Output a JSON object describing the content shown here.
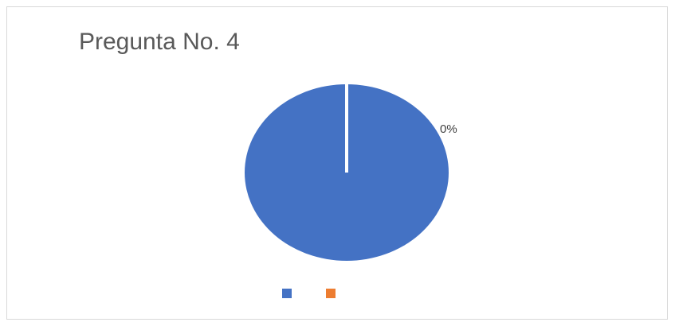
{
  "chart_data": {
    "type": "pie",
    "title": "Pregunta No. 4",
    "values": [
      100,
      0
    ],
    "data_labels": [
      "",
      "0%"
    ],
    "colors": [
      "#4472c4",
      "#ed7d31"
    ],
    "legend_position": "bottom",
    "legend_entries": [
      "",
      ""
    ]
  }
}
